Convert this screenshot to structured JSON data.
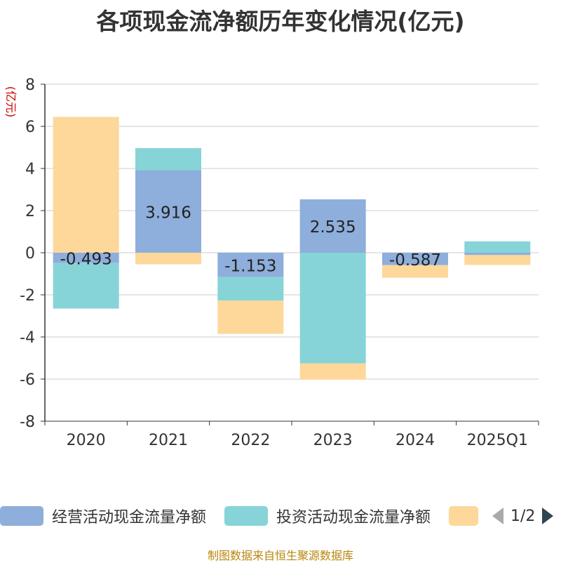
{
  "title": "各项现金流净额历年变化情况(亿元)",
  "source": "制图数据来自恒生聚源数据库",
  "legend_page": "1/2",
  "chart_data": {
    "type": "bar",
    "stacked": true,
    "ylabel": "(亿元)",
    "ylim": [
      -8,
      8
    ],
    "yticks": [
      8,
      6,
      4,
      2,
      0,
      -2,
      -4,
      -6,
      -8
    ],
    "categories": [
      "2020",
      "2021",
      "2022",
      "2023",
      "2024",
      "2025Q1"
    ],
    "grid": true,
    "legend_position": "bottom",
    "series": [
      {
        "name": "经营活动现金流量净额",
        "color": "#8eaedb",
        "values": [
          -0.493,
          3.916,
          -1.153,
          2.535,
          -0.587,
          -0.111
        ],
        "labels": [
          "-0.493",
          "3.916",
          "-1.153",
          "2.535",
          "-0.587",
          ""
        ]
      },
      {
        "name": "投资活动现金流量净额",
        "color": "#86d4d8",
        "values": [
          -2.16,
          1.05,
          -1.12,
          -5.25,
          0,
          0.54
        ]
      },
      {
        "name": "",
        "color": "#fdd89a",
        "values": [
          6.45,
          -0.55,
          -1.58,
          -0.78,
          -0.6,
          -0.47
        ]
      }
    ]
  }
}
